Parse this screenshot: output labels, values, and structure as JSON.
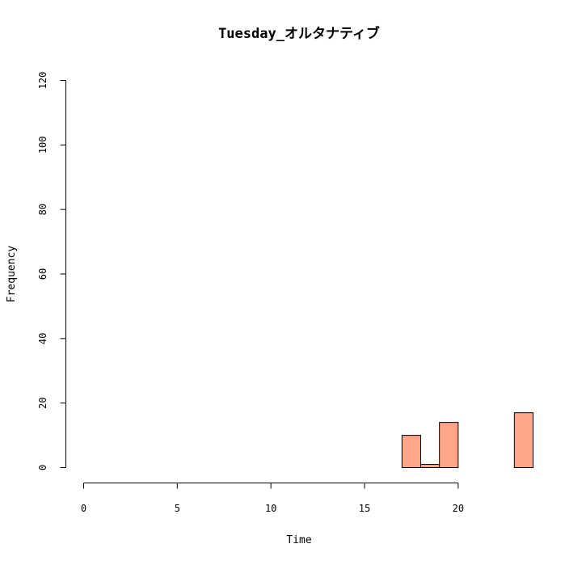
{
  "chart_data": {
    "type": "bar",
    "title": "Tuesday_オルタナティブ",
    "xlabel": "Time",
    "ylabel": "Frequency",
    "xlim": [
      0,
      24
    ],
    "ylim": [
      0,
      120
    ],
    "x_ticks": [
      0,
      5,
      10,
      15,
      20
    ],
    "y_ticks": [
      0,
      20,
      40,
      60,
      80,
      100,
      120
    ],
    "bin_width": 1,
    "bins": [
      0,
      1,
      2,
      3,
      4,
      5,
      6,
      7,
      8,
      9,
      10,
      11,
      12,
      13,
      14,
      15,
      16,
      17,
      18,
      19,
      20,
      21,
      22,
      23
    ],
    "values": [
      0,
      0,
      0,
      0,
      0,
      0,
      0,
      0,
      0,
      0,
      0,
      0,
      0,
      0,
      0,
      0,
      0,
      10,
      1,
      14,
      0,
      0,
      0,
      17
    ],
    "bar_color": "#FFA589",
    "grid": false
  }
}
